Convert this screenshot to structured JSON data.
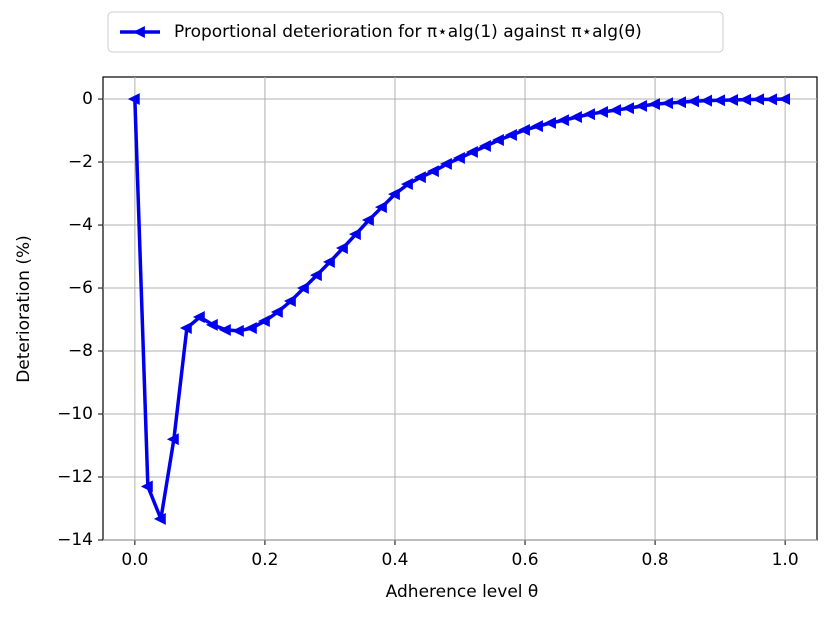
{
  "chart_data": {
    "type": "line",
    "x_label": "Adherence level θ",
    "y_label": "Deterioration (%)",
    "x": [
      0,
      0.02,
      0.04,
      0.06,
      0.08,
      0.1,
      0.12,
      0.14,
      0.16,
      0.18,
      0.2,
      0.22,
      0.24,
      0.26,
      0.28,
      0.3,
      0.32,
      0.34,
      0.36,
      0.38,
      0.4,
      0.42,
      0.44,
      0.46,
      0.48,
      0.5,
      0.52,
      0.54,
      0.56,
      0.58,
      0.6,
      0.62,
      0.64,
      0.66,
      0.68,
      0.7,
      0.72,
      0.74,
      0.76,
      0.78,
      0.8,
      0.82,
      0.84,
      0.86,
      0.88,
      0.9,
      0.92,
      0.94,
      0.96,
      0.98,
      1.0
    ],
    "series": [
      {
        "name": "Proportional deterioration for π⋆alg(1) against π⋆alg(θ)",
        "color": "#0000ee",
        "values": [
          0,
          -12.3,
          -13.33,
          -10.8,
          -7.27,
          -6.92,
          -7.17,
          -7.33,
          -7.36,
          -7.27,
          -7.05,
          -6.76,
          -6.41,
          -6.0,
          -5.59,
          -5.17,
          -4.73,
          -4.29,
          -3.84,
          -3.43,
          -3.02,
          -2.7,
          -2.48,
          -2.29,
          -2.06,
          -1.87,
          -1.68,
          -1.49,
          -1.3,
          -1.14,
          -0.98,
          -0.86,
          -0.76,
          -0.67,
          -0.57,
          -0.48,
          -0.41,
          -0.35,
          -0.29,
          -0.22,
          -0.16,
          -0.13,
          -0.1,
          -0.07,
          -0.05,
          -0.04,
          -0.03,
          -0.02,
          -0.01,
          -0.01,
          0
        ]
      }
    ],
    "xlim": [
      -0.049,
      1.049
    ],
    "ylim": [
      -14,
      0.7
    ],
    "xticks": [
      {
        "value": 0,
        "label": "0.0"
      },
      0.2,
      0.4,
      0.6,
      0.8,
      {
        "value": 1,
        "label": "1.0"
      }
    ],
    "yticks": [
      {
        "value": -14,
        "label": "−14"
      },
      {
        "value": -12,
        "label": "−12"
      },
      {
        "value": -10,
        "label": "−10"
      },
      {
        "value": -8,
        "label": "−8"
      },
      {
        "value": -6,
        "label": "−6"
      },
      {
        "value": -4,
        "label": "−4"
      },
      {
        "value": -2,
        "label": "−2"
      },
      0
    ],
    "grid": true,
    "legend": "top"
  }
}
